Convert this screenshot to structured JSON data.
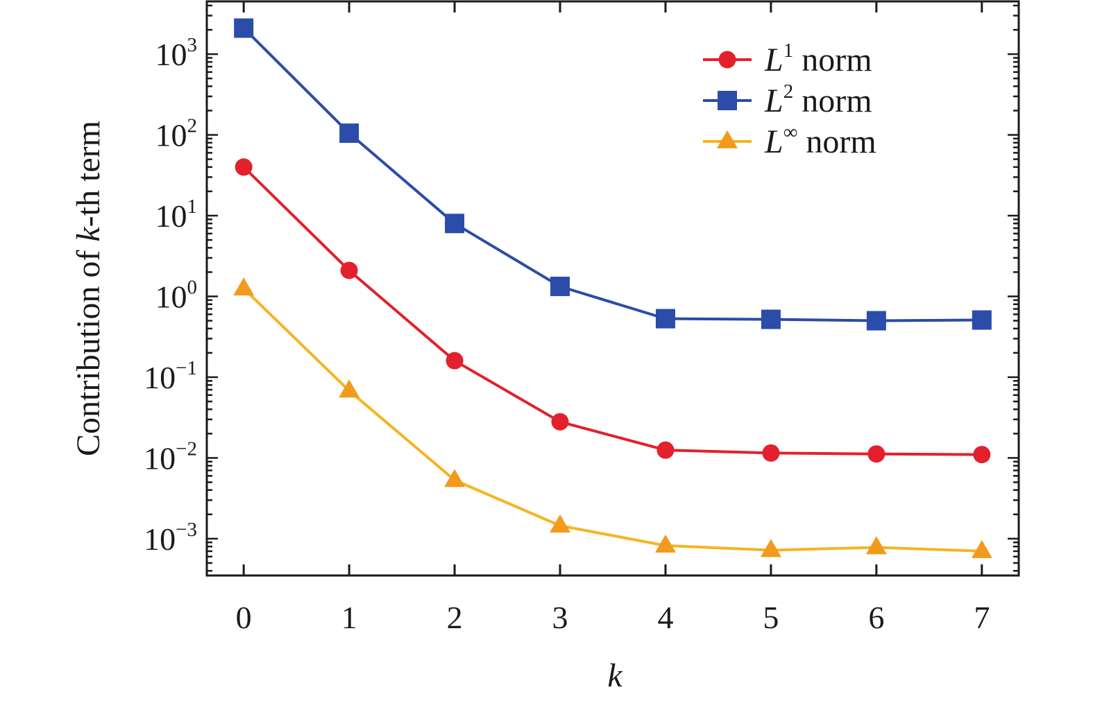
{
  "chart_data": {
    "type": "line",
    "title": "",
    "xlabel": "k",
    "ylabel_prefix": "Contribution of ",
    "ylabel_var": "k",
    "ylabel_suffix": "-th term",
    "y_scale": "log",
    "xlim": [
      -0.35,
      7.35
    ],
    "ylim": [
      0.00035,
      4500
    ],
    "x": [
      0,
      1,
      2,
      3,
      4,
      5,
      6,
      7
    ],
    "x_tick_labels": [
      "0",
      "1",
      "2",
      "3",
      "4",
      "5",
      "6",
      "7"
    ],
    "y_ticks": [
      {
        "base": "10",
        "exp": "3",
        "value": 1000
      },
      {
        "base": "10",
        "exp": "2",
        "value": 100
      },
      {
        "base": "10",
        "exp": "1",
        "value": 10
      },
      {
        "base": "10",
        "exp": "0",
        "value": 1
      },
      {
        "base": "10",
        "exp": "−1",
        "value": 0.1
      },
      {
        "base": "10",
        "exp": "−2",
        "value": 0.01
      },
      {
        "base": "10",
        "exp": "−3",
        "value": 0.001
      }
    ],
    "grid": false,
    "legend_position": "top-right",
    "series": [
      {
        "name_var": "L",
        "name_sup": "1",
        "name_rest": " norm",
        "color": "#e3202b",
        "marker": "circle",
        "values": [
          40,
          2.1,
          0.16,
          0.028,
          0.0125,
          0.0115,
          0.0112,
          0.011
        ]
      },
      {
        "name_var": "L",
        "name_sup": "2",
        "name_rest": " norm",
        "color": "#2b4ca8",
        "marker": "square",
        "values": [
          2100,
          105,
          8.0,
          1.33,
          0.53,
          0.52,
          0.5,
          0.51
        ]
      },
      {
        "name_var": "L",
        "name_sup": "∞",
        "name_rest": " norm",
        "color": "#f29a1c",
        "line_color": "#f5b421",
        "marker": "triangle",
        "values": [
          1.25,
          0.068,
          0.0053,
          0.00145,
          0.00082,
          0.00072,
          0.00078,
          0.0007
        ]
      }
    ]
  }
}
